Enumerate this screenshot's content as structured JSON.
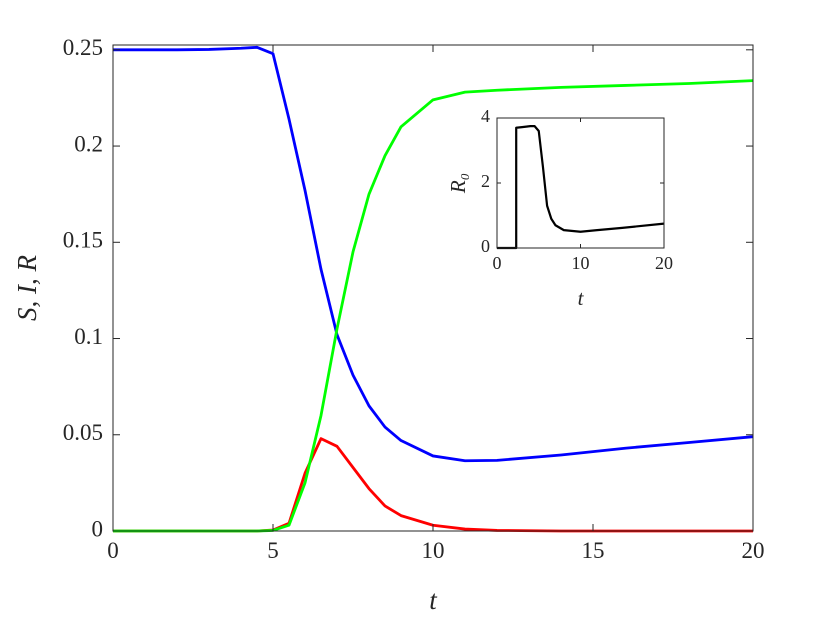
{
  "chart_data": [
    {
      "type": "line",
      "xlabel": "t",
      "ylabel": "S, I, R",
      "x": [
        0,
        1,
        2,
        3,
        4,
        4.5,
        5,
        5.5,
        6,
        6.5,
        7,
        7.5,
        8,
        8.5,
        9,
        10,
        11,
        12,
        14,
        16,
        18,
        20
      ],
      "series": [
        {
          "color": "#0000ff",
          "values": [
            0.25,
            0.25,
            0.25,
            0.2502,
            0.2508,
            0.2513,
            0.248,
            0.214,
            0.177,
            0.136,
            0.102,
            0.081,
            0.065,
            0.054,
            0.047,
            0.039,
            0.0365,
            0.0367,
            0.0395,
            0.043,
            0.046,
            0.049
          ]
        },
        {
          "color": "#ff0000",
          "values": [
            0,
            0,
            0,
            0,
            0,
            0,
            0.0005,
            0.004,
            0.03,
            0.048,
            0.044,
            0.033,
            0.022,
            0.013,
            0.008,
            0.003,
            0.001,
            0.0003,
            0,
            0,
            0,
            0
          ]
        },
        {
          "color": "#00ff00",
          "values": [
            0,
            0,
            0,
            0,
            0,
            0,
            0.0003,
            0.003,
            0.025,
            0.06,
            0.105,
            0.145,
            0.175,
            0.195,
            0.21,
            0.224,
            0.228,
            0.229,
            0.2305,
            0.2315,
            0.2325,
            0.234
          ]
        }
      ],
      "xlim": [
        0,
        20
      ],
      "ylim": [
        0,
        0.2525
      ],
      "xticks": [
        0,
        5,
        10,
        15,
        20
      ],
      "yticks": [
        0,
        0.05,
        0.1,
        0.15,
        0.2,
        0.25
      ]
    },
    {
      "type": "line",
      "xlabel": "t",
      "ylabel": "R₀",
      "x": [
        0,
        2.3,
        2.3,
        3,
        4,
        4.5,
        5,
        5.5,
        6,
        6.5,
        7,
        8,
        10,
        12,
        15,
        20
      ],
      "series": [
        {
          "color": "#000000",
          "values": [
            0,
            0,
            3.7,
            3.72,
            3.75,
            3.75,
            3.6,
            2.5,
            1.3,
            0.9,
            0.7,
            0.55,
            0.5,
            0.55,
            0.62,
            0.75
          ]
        }
      ],
      "xlim": [
        0,
        20
      ],
      "ylim": [
        0,
        4
      ],
      "xticks": [
        0,
        10,
        20
      ],
      "yticks": [
        0,
        2,
        4
      ]
    }
  ]
}
